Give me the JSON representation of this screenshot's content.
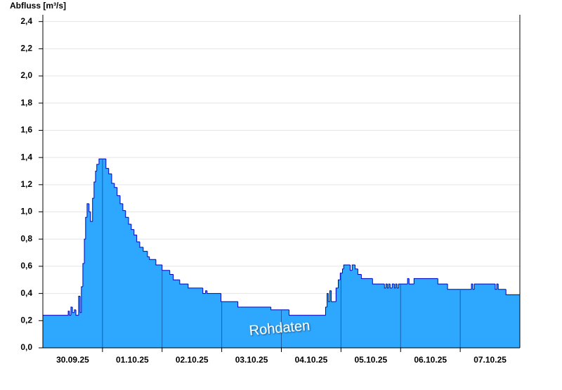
{
  "chart_data": {
    "type": "step-area",
    "y_label": "Abfluss [m³/s]",
    "annotation": "Rohdaten",
    "color": "#2ea7ff",
    "line_color": "#0000c0",
    "grid": true,
    "xlim": [
      0,
      192
    ],
    "ylim": [
      0,
      2.45
    ],
    "yticks": [
      {
        "value": 0,
        "label": "0,0"
      },
      {
        "value": 0.2,
        "label": "0,2"
      },
      {
        "value": 0.4,
        "label": "0,4"
      },
      {
        "value": 0.6,
        "label": "0,6"
      },
      {
        "value": 0.8,
        "label": "0,8"
      },
      {
        "value": 1.0,
        "label": "1,0"
      },
      {
        "value": 1.2,
        "label": "1,2"
      },
      {
        "value": 1.4,
        "label": "1,4"
      },
      {
        "value": 1.6,
        "label": "1,6"
      },
      {
        "value": 1.8,
        "label": "1,8"
      },
      {
        "value": 2.0,
        "label": "2,0"
      },
      {
        "value": 2.2,
        "label": "2,2"
      },
      {
        "value": 2.4,
        "label": "2,4"
      }
    ],
    "xticks": [
      {
        "value": 12,
        "label": "30.09.25"
      },
      {
        "value": 36,
        "label": "01.10.25"
      },
      {
        "value": 60,
        "label": "02.10.25"
      },
      {
        "value": 84,
        "label": "03.10.25"
      },
      {
        "value": 108,
        "label": "04.10.25"
      },
      {
        "value": 132,
        "label": "05.10.25"
      },
      {
        "value": 156,
        "label": "06.10.25"
      },
      {
        "value": 180,
        "label": "07.10.25"
      }
    ],
    "xgrid": [
      24,
      48,
      72,
      96,
      120,
      144,
      168
    ],
    "x": [
      0,
      10.2,
      10.7,
      11.3,
      11.9,
      12.7,
      13.3,
      14.4,
      15.0,
      15.5,
      16.1,
      16.7,
      17.2,
      17.8,
      18.6,
      19.2,
      20.0,
      20.6,
      21.2,
      21.7,
      22.6,
      25.4,
      26.5,
      27.7,
      28.8,
      29.9,
      31.1,
      32.2,
      33.3,
      34.5,
      35.6,
      36.7,
      37.8,
      39.0,
      40.4,
      42.1,
      42.9,
      45.5,
      48.0,
      51.1,
      52.5,
      55.1,
      58.5,
      64.4,
      65.5,
      66.1,
      71.7,
      78.5,
      91.8,
      99.1,
      113.8,
      114.4,
      114.9,
      115.5,
      116.1,
      118.0,
      118.9,
      119.7,
      120.6,
      121.1,
      123.7,
      124.5,
      125.7,
      126.8,
      128.2,
      132.7,
      137.5,
      138.1,
      138.7,
      139.2,
      139.8,
      140.6,
      141.5,
      142.0,
      142.6,
      143.2,
      146.8,
      147.4,
      149.4,
      159.0,
      162.9,
      172.5,
      173.1,
      173.7,
      182.1,
      182.7,
      183.3,
      186.4
    ],
    "values": [
      0.24,
      0.27,
      0.24,
      0.3,
      0.26,
      0.28,
      0.24,
      0.38,
      0.26,
      0.45,
      0.62,
      0.8,
      0.96,
      1.06,
      1.0,
      0.93,
      1.1,
      1.22,
      1.3,
      1.35,
      1.39,
      1.32,
      1.28,
      1.21,
      1.18,
      1.12,
      1.06,
      1.01,
      0.96,
      0.91,
      0.87,
      0.83,
      0.78,
      0.74,
      0.71,
      0.67,
      0.65,
      0.61,
      0.57,
      0.54,
      0.5,
      0.47,
      0.44,
      0.4,
      0.42,
      0.4,
      0.34,
      0.3,
      0.28,
      0.24,
      0.3,
      0.4,
      0.34,
      0.42,
      0.34,
      0.44,
      0.5,
      0.55,
      0.58,
      0.61,
      0.57,
      0.61,
      0.58,
      0.54,
      0.51,
      0.47,
      0.44,
      0.47,
      0.44,
      0.47,
      0.44,
      0.47,
      0.44,
      0.47,
      0.44,
      0.47,
      0.51,
      0.47,
      0.51,
      0.47,
      0.43,
      0.47,
      0.43,
      0.47,
      0.43,
      0.47,
      0.43,
      0.39
    ]
  }
}
